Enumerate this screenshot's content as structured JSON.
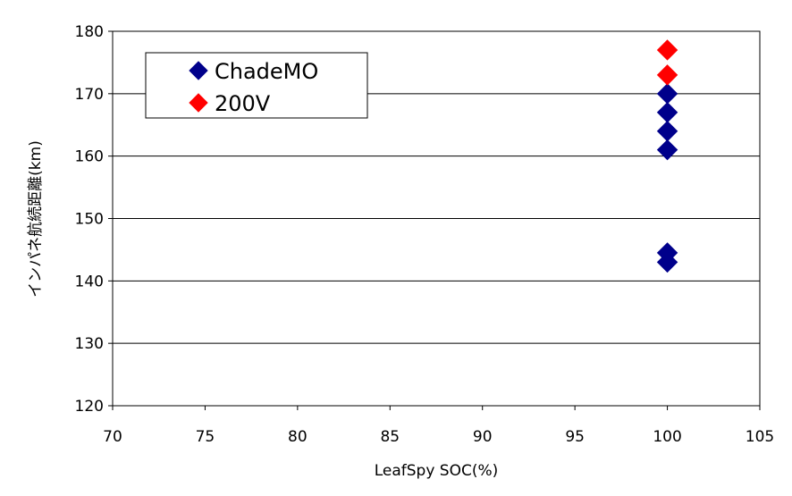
{
  "chart_data": {
    "type": "scatter",
    "xlabel": "LeafSpy SOC(%)",
    "ylabel": "インパネ航続距離(km)",
    "xlim": [
      70,
      105
    ],
    "ylim": [
      120,
      180
    ],
    "x_ticks": [
      70,
      75,
      80,
      85,
      90,
      95,
      100,
      105
    ],
    "y_ticks": [
      120,
      130,
      140,
      150,
      160,
      170,
      180
    ],
    "grid": "horizontal",
    "legend_position": "top-left",
    "series": [
      {
        "name": "ChadeMO",
        "color": "#00008B",
        "marker": "diamond",
        "points": [
          {
            "x": 100,
            "y": 170
          },
          {
            "x": 100,
            "y": 167
          },
          {
            "x": 100,
            "y": 164
          },
          {
            "x": 100,
            "y": 161
          },
          {
            "x": 100,
            "y": 144.5
          },
          {
            "x": 100,
            "y": 143
          }
        ]
      },
      {
        "name": "200V",
        "color": "#FF0000",
        "marker": "diamond",
        "points": [
          {
            "x": 100,
            "y": 177
          },
          {
            "x": 100,
            "y": 173
          }
        ]
      }
    ]
  }
}
